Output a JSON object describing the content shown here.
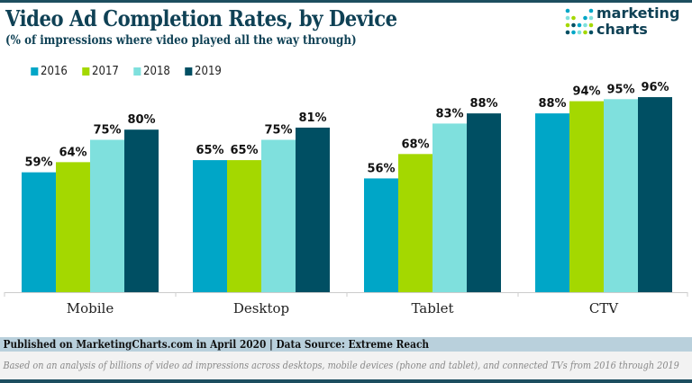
{
  "chart_data": {
    "type": "bar",
    "title": "Video Ad Completion Rates, by Device",
    "subtitle": "(% of impressions where video played all the way through)",
    "categories": [
      "Mobile",
      "Desktop",
      "Tablet",
      "CTV"
    ],
    "series": [
      {
        "name": "2016",
        "color": "#00a6c7",
        "values": [
          59,
          65,
          56,
          88
        ]
      },
      {
        "name": "2017",
        "color": "#a4d800",
        "values": [
          64,
          65,
          68,
          94
        ]
      },
      {
        "name": "2018",
        "color": "#7fe0dd",
        "values": [
          75,
          75,
          83,
          95
        ]
      },
      {
        "name": "2019",
        "color": "#004f63",
        "values": [
          80,
          81,
          88,
          96
        ]
      }
    ],
    "ylim": [
      0,
      100
    ],
    "value_suffix": "%",
    "grid": false,
    "legend": "top-left"
  },
  "logo": {
    "line1": "marketing",
    "line2": "charts"
  },
  "footer": {
    "source": "Published on MarketingCharts.com in April 2020 | Data Source: Extreme Reach",
    "note": "Based on an analysis of billions of video ad impressions across desktops, mobile devices (phone and tablet), and connected TVs from 2016 through 2019"
  }
}
